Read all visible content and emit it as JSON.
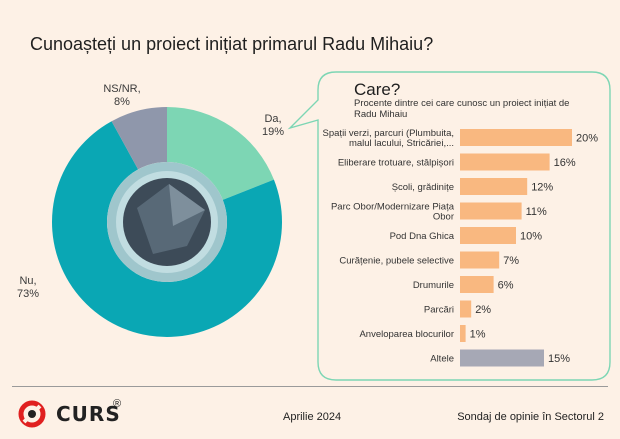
{
  "title": "Cunoașteți un proiect inițiat primarul Radu Mihaiu?",
  "colors": {
    "background": "#fdf1e6",
    "nu": "#0aa7b4",
    "da": "#7dd6b4",
    "nsnr": "#8f97ab",
    "bar": "#f9b880",
    "bar_other": "#a6a8b5"
  },
  "chart_data": [
    {
      "type": "pie",
      "title": "Cunoașteți un proiect inițiat primarul Radu Mihaiu?",
      "slices": [
        {
          "label": "Da,",
          "value_label": "19%",
          "value": 19
        },
        {
          "label": "Nu,",
          "value_label": "73%",
          "value": 73
        },
        {
          "label": "NS/NR,",
          "value_label": "8%",
          "value": 8
        }
      ]
    },
    {
      "type": "bar",
      "orientation": "horizontal",
      "title": "Care?",
      "subtitle": "Procente dintre cei care cunosc un proiect inițiat de Radu Mihaiu",
      "categories": [
        [
          "Spații verzi, parcuri (Plumbuita,",
          "malul lacului, Stricăriei,..."
        ],
        [
          "Eliberare trotuare, stâlpișori"
        ],
        [
          "Școli, grădinițe"
        ],
        [
          "Parc Obor/Modernizare Piața",
          "Obor"
        ],
        [
          "Pod Dna Ghica"
        ],
        [
          "Curățenie, pubele selective"
        ],
        [
          "Drumurile"
        ],
        [
          "Parcări"
        ],
        [
          "Anvelopareа blocurilor"
        ],
        [
          "Altele"
        ]
      ],
      "values": [
        20,
        16,
        12,
        11,
        10,
        7,
        6,
        2,
        1,
        15
      ],
      "value_labels": [
        "20%",
        "16%",
        "12%",
        "11%",
        "10%",
        "7%",
        "6%",
        "2%",
        "1%",
        "15%"
      ],
      "xlim": [
        0,
        20
      ]
    }
  ],
  "footer": {
    "logo_text": "CURS",
    "logo_reg": "®",
    "date": "Aprilie 2024",
    "survey": "Sondaj de opinie în Sectorul 2"
  }
}
